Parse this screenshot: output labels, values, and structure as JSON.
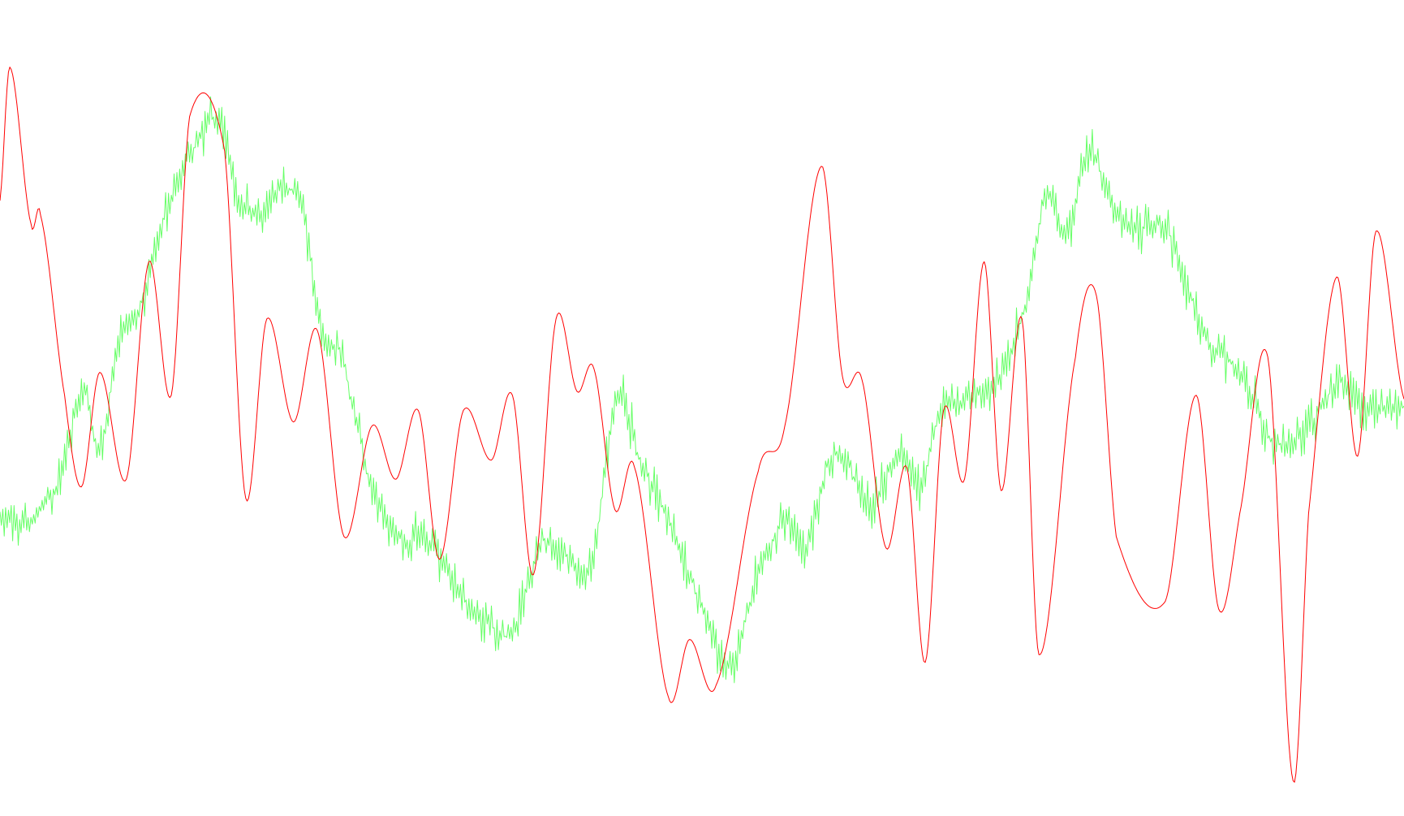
{
  "chart_data": {
    "type": "line",
    "title": "",
    "xlabel": "",
    "ylabel": "",
    "grid": false,
    "legend": "none",
    "xlim": [
      0,
      1000
    ],
    "ylim": [
      -10,
      10
    ],
    "series": [
      {
        "color": "#66ff66",
        "line_width": 1,
        "noise_amplitude": 0.55,
        "x": [
          0,
          20,
          40,
          50,
          60,
          70,
          85,
          100,
          120,
          140,
          155,
          170,
          185,
          200,
          215,
          230,
          242,
          250,
          265,
          285,
          305,
          330,
          345,
          365,
          385,
          400,
          420,
          440,
          455,
          470,
          485,
          500,
          520,
          540,
          560,
          575,
          590,
          600,
          620,
          640,
          655,
          670,
          690,
          710,
          730,
          745,
          760,
          775,
          790,
          805,
          830,
          845,
          860,
          880,
          895,
          905,
          925,
          940,
          955,
          970,
          990,
          1000
        ],
        "y": [
          -2.6,
          -2.7,
          -1.8,
          -0.4,
          0.8,
          -0.8,
          2.0,
          3.0,
          5.6,
          7.2,
          7.8,
          5.8,
          5.4,
          6.0,
          5.5,
          2.2,
          1.8,
          0.5,
          -1.9,
          -3.1,
          -3.3,
          -4.7,
          -5.3,
          -5.6,
          -3.3,
          -3.5,
          -4.0,
          0.5,
          -1.0,
          -2.2,
          -3.5,
          -5.0,
          -6.4,
          -4.1,
          -2.7,
          -3.3,
          -1.2,
          -1.0,
          -2.3,
          -0.9,
          -1.8,
          0.2,
          0.5,
          1.0,
          2.9,
          5.8,
          4.9,
          7.0,
          5.8,
          5.0,
          5.0,
          3.5,
          2.0,
          1.4,
          0.4,
          -0.6,
          -0.5,
          0.2,
          1.0,
          0.3,
          0.3,
          0.3
        ]
      },
      {
        "color": "#ff0000",
        "line_width": 1,
        "x": [
          0,
          7,
          22,
          29,
          46,
          58,
          71,
          90,
          106,
          122,
          135,
          160,
          175,
          190,
          209,
          226,
          245,
          265,
          282,
          298,
          313,
          330,
          350,
          365,
          380,
          396,
          411,
          423,
          438,
          452,
          476,
          491,
          510,
          540,
          559,
          585,
          600,
          614,
          631,
          646,
          659,
          672,
          687,
          701,
          713,
          728,
          740,
          766,
          781,
          795,
          830,
          852,
          868,
          883,
          903,
          921,
          932,
          952,
          967,
          980,
          1000
        ],
        "y": [
          5.7,
          9.2,
          5.1,
          5.3,
          0.6,
          -1.8,
          1.2,
          -1.6,
          4.1,
          0.6,
          7.9,
          7.0,
          -2.1,
          2.6,
          -0.1,
          2.3,
          -3.1,
          -0.2,
          -1.6,
          0.2,
          -3.7,
          0.2,
          -1.1,
          0.6,
          -4.1,
          2.6,
          0.7,
          1.3,
          -2.4,
          -1.3,
          -7.3,
          -5.8,
          -7.0,
          -1.4,
          -0.2,
          6.6,
          1.1,
          1.0,
          -3.4,
          -1.3,
          -6.4,
          0.2,
          -1.6,
          4.1,
          -1.9,
          2.6,
          -6.2,
          1.6,
          3.2,
          -3.1,
          -4.8,
          0.6,
          -5.0,
          -2.5,
          1.6,
          -9.5,
          -2.5,
          3.7,
          -1.0,
          4.9,
          0.5
        ]
      }
    ]
  }
}
